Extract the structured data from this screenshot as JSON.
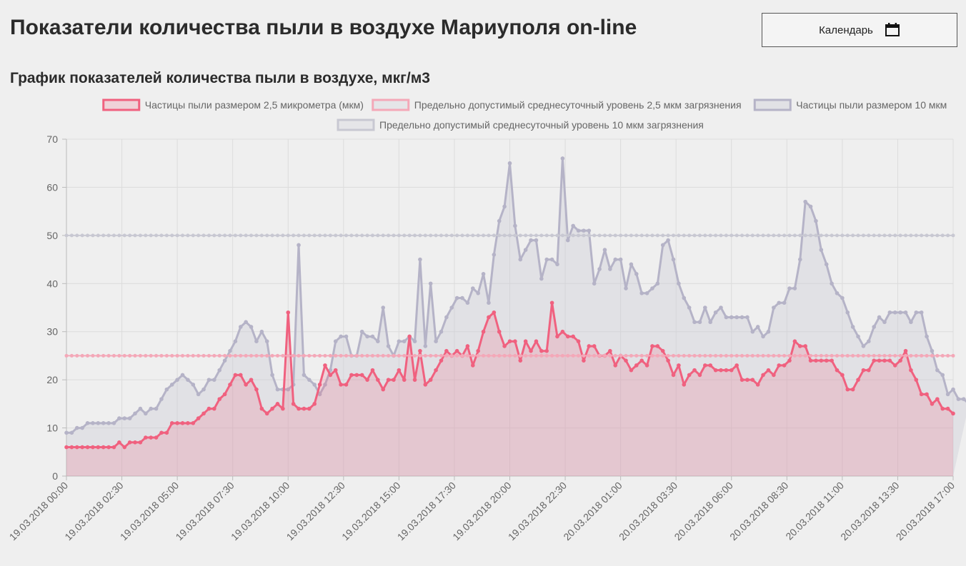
{
  "page": {
    "title": "Показатели количества пыли в воздухе Мариуполя on-line",
    "calendar_button": "Календарь",
    "calendar_icon": "calendar-icon"
  },
  "chart_data": {
    "type": "line",
    "title": "График показателей количества пыли в воздухе, мкг/м3",
    "ylim": [
      0,
      70
    ],
    "y_ticks": [
      0,
      10,
      20,
      30,
      40,
      50,
      60,
      70
    ],
    "x_tick_labels": [
      "19.03.2018 00:00",
      "19.03.2018 02:30",
      "19.03.2018 05:00",
      "19.03.2018 07:30",
      "19.03.2018 10:00",
      "19.03.2018 12:30",
      "19.03.2018 15:00",
      "19.03.2018 17:30",
      "19.03.2018 20:00",
      "19.03.2018 22:30",
      "20.03.2018 01:00",
      "20.03.2018 03:30",
      "20.03.2018 06:00",
      "20.03.2018 08:30",
      "20.03.2018 11:00",
      "20.03.2018 13:30",
      "20.03.2018 17:00"
    ],
    "grid": true,
    "legend_position": "top",
    "series": [
      {
        "name": "Частицы пыли размером 2,5 микрометра (мкм)",
        "color": "#f0617f",
        "fill": "rgba(240,97,127,0.2)",
        "values": [
          6,
          6,
          6,
          6,
          6,
          6,
          6,
          6,
          6,
          6,
          7,
          6,
          7,
          7,
          7,
          8,
          8,
          8,
          9,
          9,
          11,
          11,
          11,
          11,
          11,
          12,
          13,
          14,
          14,
          16,
          17,
          19,
          21,
          21,
          19,
          20,
          18,
          14,
          13,
          14,
          15,
          14,
          34,
          15,
          14,
          14,
          14,
          15,
          19,
          23,
          21,
          22,
          19,
          19,
          21,
          21,
          21,
          20,
          22,
          20,
          18,
          20,
          20,
          22,
          20,
          29,
          20,
          26,
          19,
          20,
          22,
          24,
          26,
          25,
          26,
          25,
          27,
          23,
          26,
          30,
          33,
          34,
          30,
          27,
          28,
          28,
          24,
          28,
          26,
          28,
          26,
          26,
          36,
          29,
          30,
          29,
          29,
          28,
          24,
          27,
          27,
          25,
          25,
          26,
          23,
          25,
          24,
          22,
          23,
          24,
          23,
          27,
          27,
          26,
          24,
          21,
          23,
          19,
          21,
          22,
          21,
          23,
          23,
          22,
          22,
          22,
          22,
          23,
          20,
          20,
          20,
          19,
          21,
          22,
          21,
          23,
          23,
          24,
          28,
          27,
          27,
          24,
          24,
          24,
          24,
          24,
          22,
          21,
          18,
          18,
          20,
          22,
          22,
          24,
          24,
          24,
          24,
          23,
          24,
          26,
          22,
          20,
          17,
          17,
          15,
          16,
          14,
          14,
          13
        ]
      },
      {
        "name": "Предельно допустимый среднесуточный уровень 2,5 мкм загрязнения",
        "color": "#f4a8b8",
        "constant": 25
      },
      {
        "name": "Частицы пыли размером 10 мкм",
        "color": "#b5b3c7",
        "fill": "rgba(200,200,212,0.35)",
        "values": [
          9,
          9,
          10,
          10,
          11,
          11,
          11,
          11,
          11,
          11,
          12,
          12,
          12,
          13,
          14,
          13,
          14,
          14,
          16,
          18,
          19,
          20,
          21,
          20,
          19,
          17,
          18,
          20,
          20,
          22,
          24,
          26,
          28,
          31,
          32,
          31,
          28,
          30,
          28,
          21,
          18,
          18,
          18,
          19,
          48,
          21,
          20,
          19,
          17,
          19,
          22,
          28,
          29,
          29,
          25,
          25,
          30,
          29,
          29,
          28,
          35,
          27,
          25,
          28,
          28,
          29,
          28,
          45,
          27,
          40,
          28,
          30,
          33,
          35,
          37,
          37,
          36,
          39,
          38,
          42,
          36,
          46,
          53,
          56,
          65,
          52,
          45,
          47,
          49,
          49,
          41,
          45,
          45,
          44,
          66,
          49,
          52,
          51,
          51,
          51,
          40,
          43,
          47,
          43,
          45,
          45,
          39,
          44,
          42,
          38,
          38,
          39,
          40,
          48,
          49,
          45,
          40,
          37,
          35,
          32,
          32,
          35,
          32,
          34,
          35,
          33,
          33,
          33,
          33,
          33,
          30,
          31,
          29,
          30,
          35,
          36,
          36,
          39,
          39,
          45,
          57,
          56,
          53,
          47,
          44,
          40,
          38,
          37,
          34,
          31,
          29,
          27,
          28,
          31,
          33,
          32,
          34,
          34,
          34,
          34,
          32,
          34,
          34,
          29,
          26,
          22,
          21,
          17,
          18,
          16,
          16,
          15
        ]
      },
      {
        "name": "Предельно допустимый среднесуточный уровень 10 мкм загрязнения",
        "color": "#c8c8d2",
        "constant": 50
      }
    ]
  }
}
